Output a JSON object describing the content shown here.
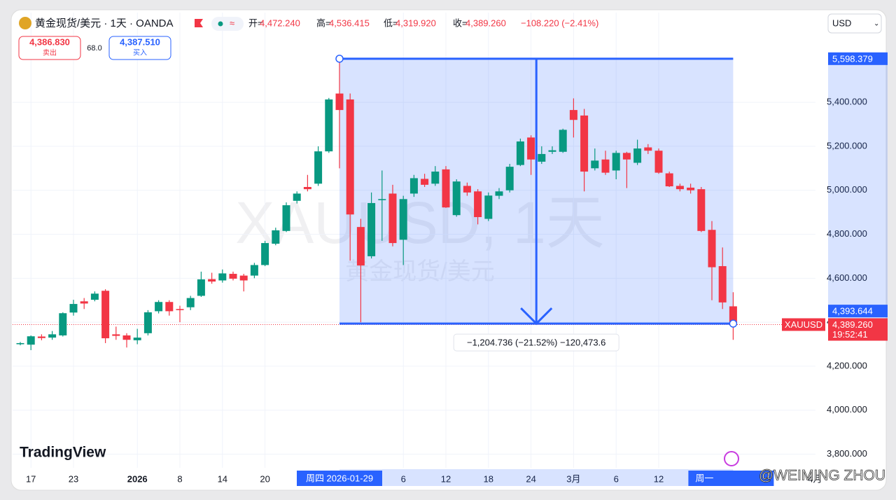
{
  "header": {
    "symbol": "黄金现货/美元 · 1天 · OANDA",
    "open_label": "开=",
    "open": "4,472.240",
    "high_label": "高=",
    "high": "4,536.415",
    "low_label": "低=",
    "low": "4,319.920",
    "close_label": "收=",
    "close": "4,389.260",
    "change": "−108.220 (−2.41%)",
    "sell_price": "4,386.830",
    "sell_label": "卖出",
    "spread": "68.0",
    "buy_price": "4,387.510",
    "buy_label": "买入",
    "currency": "USD"
  },
  "watermark": {
    "symbol": "XAUUSD, 1天",
    "name": "黄金现货/美元",
    "logo": "TradingView",
    "credit": "@WEIMING ZHOU"
  },
  "chart_data": {
    "type": "candlestick",
    "up_color": "#089981",
    "down_color": "#f23645",
    "categories": [
      null,
      "17",
      null,
      null,
      null,
      "23",
      null,
      null,
      null,
      null,
      null,
      "2026",
      null,
      null,
      null,
      "8",
      null,
      null,
      null,
      "14",
      null,
      null,
      null,
      "20",
      null,
      null,
      null,
      null,
      null,
      null,
      null,
      null,
      null,
      null,
      null,
      null,
      "6",
      null,
      null,
      null,
      "12",
      null,
      null,
      null,
      "18",
      null,
      null,
      null,
      "24",
      null,
      null,
      null,
      "3月",
      null,
      null,
      null,
      "6",
      null,
      null,
      null,
      "12",
      null,
      null,
      null,
      null,
      null,
      null,
      null
    ],
    "open": [
      4300,
      4298,
      4335,
      4330,
      4340,
      4444,
      4495,
      4502,
      4543,
      4345,
      4340,
      4318,
      4350,
      4450,
      4492,
      4460,
      4468,
      4520,
      4596,
      4590,
      4620,
      4612,
      4612,
      4660,
      4757,
      4815,
      4952,
      5015,
      5030,
      5177,
      5440,
      5413,
      4833,
      4700,
      4955,
      4985,
      4775,
      4985,
      5052,
      5030,
      5095,
      4887,
      5020,
      4995,
      4870,
      4975,
      5000,
      5115,
      5240,
      5130,
      5175,
      5175,
      5365,
      5340,
      5100,
      5140,
      5090,
      5170,
      5125,
      5195,
      5180,
      5077,
      5020,
      5012,
      5005,
      4820,
      4655,
      4472.24
    ],
    "high": [
      4310,
      4340,
      4345,
      4360,
      4445,
      4502,
      4510,
      4540,
      4550,
      4380,
      4350,
      4370,
      4455,
      4500,
      4500,
      4475,
      4520,
      4630,
      4625,
      4640,
      4630,
      4620,
      4670,
      4770,
      4830,
      4945,
      4995,
      5070,
      5200,
      5420,
      5598,
      5440,
      4870,
      4990,
      5090,
      5025,
      4975,
      5070,
      5075,
      5110,
      5110,
      5050,
      5035,
      5005,
      4990,
      5010,
      5120,
      5235,
      5250,
      5200,
      5200,
      5280,
      5418,
      5370,
      5190,
      5180,
      5180,
      5175,
      5230,
      5210,
      5190,
      5085,
      5030,
      5030,
      5015,
      4860,
      4740,
      4536.415
    ],
    "low": [
      4295,
      4273,
      4318,
      4320,
      4335,
      4430,
      4460,
      4495,
      4305,
      4320,
      4285,
      4300,
      4340,
      4440,
      4430,
      4400,
      4455,
      4515,
      4575,
      4580,
      4590,
      4540,
      4600,
      4655,
      4750,
      4810,
      4940,
      4995,
      5020,
      5170,
      5100,
      4680,
      4400,
      4690,
      4770,
      4745,
      4660,
      4970,
      5015,
      5020,
      4920,
      4880,
      4975,
      4845,
      4860,
      4960,
      4990,
      5110,
      5070,
      5120,
      5165,
      5170,
      5240,
      4995,
      5090,
      5070,
      5050,
      5010,
      5115,
      5165,
      5075,
      5015,
      4995,
      4985,
      4810,
      4500,
      4460,
      4319.92
    ],
    "close": [
      4305,
      4336,
      4328,
      4345,
      4441,
      4483,
      4485,
      4530,
      4327,
      4338,
      4320,
      4330,
      4445,
      4492,
      4450,
      4455,
      4510,
      4595,
      4585,
      4622,
      4598,
      4590,
      4660,
      4760,
      4818,
      4932,
      4985,
      5005,
      5177,
      5413,
      5365,
      4890,
      4658,
      4942,
      4960,
      4760,
      4960,
      5055,
      5025,
      5085,
      4922,
      5040,
      4990,
      4878,
      4976,
      4995,
      5107,
      5222,
      5140,
      5165,
      5182,
      5275,
      5320,
      5085,
      5135,
      5080,
      5170,
      5140,
      5190,
      5180,
      5080,
      5018,
      5005,
      5000,
      4815,
      4650,
      4490,
      4389.26
    ],
    "ylim": [
      3738,
      5808
    ],
    "yticks": [
      {
        "value": 3800,
        "label": "3,800.000"
      },
      {
        "value": 4000,
        "label": "4,000.000"
      },
      {
        "value": 4200,
        "label": "4,200.000"
      },
      {
        "value": 4400,
        "label": "4,400.000"
      },
      {
        "value": 4600,
        "label": "4,600.000"
      },
      {
        "value": 4800,
        "label": "4,800.000"
      },
      {
        "value": 5000,
        "label": "5,000.000"
      },
      {
        "value": 5200,
        "label": "5,200.000"
      },
      {
        "value": 5400,
        "label": "5,400.000"
      }
    ],
    "grid": true,
    "x_extra_label": "4月",
    "measure": {
      "start": {
        "value": 5598.379,
        "label": "5,598.379"
      },
      "end": {
        "value": 4393.644,
        "label": "4,393.644"
      },
      "start_date": "周四 2026-01-29",
      "end_date": "周一",
      "text": "−1,204.736 (−21.52%) −120,473.6",
      "color": "#2962ff"
    },
    "last_price": {
      "value": 4389.26,
      "label": "4,389.260"
    },
    "symbol_tag": "XAUUSD",
    "countdown": "19:52:41"
  }
}
